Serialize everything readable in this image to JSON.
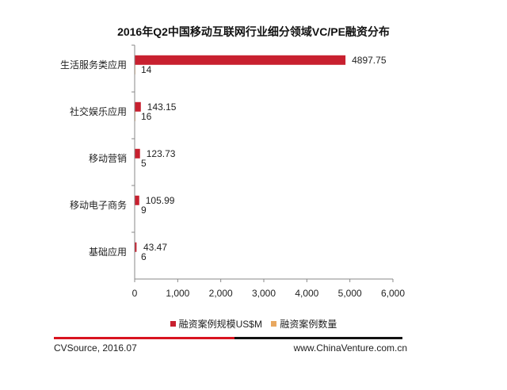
{
  "chart_data": {
    "type": "bar",
    "orientation": "horizontal",
    "title": "2016年Q2中国移动互联网行业细分领域VC/PE融资分布",
    "categories": [
      "生活服务类应用",
      "社交娱乐应用",
      "移动营销",
      "移动电子商务",
      "基础应用"
    ],
    "series": [
      {
        "name": "融资案例规模US$M",
        "values": [
          4897.75,
          143.15,
          123.73,
          105.99,
          43.47
        ],
        "color": "#c8202f"
      },
      {
        "name": "融资案例数量",
        "values": [
          14,
          16,
          5,
          9,
          6
        ],
        "color": "#e8a860"
      }
    ],
    "x_ticks": [
      "0",
      "1,000",
      "2,000",
      "3,000",
      "4,000",
      "5,000",
      "6,000"
    ],
    "xlim": [
      0,
      6000
    ],
    "grid": false,
    "legend_position": "bottom"
  },
  "footer": {
    "source": "CVSource, 2016.07",
    "website": "www.ChinaVenture.com.cn"
  },
  "colors": {
    "footer_red": "#d9141f",
    "footer_black": "#111111",
    "axis": "#888888"
  }
}
